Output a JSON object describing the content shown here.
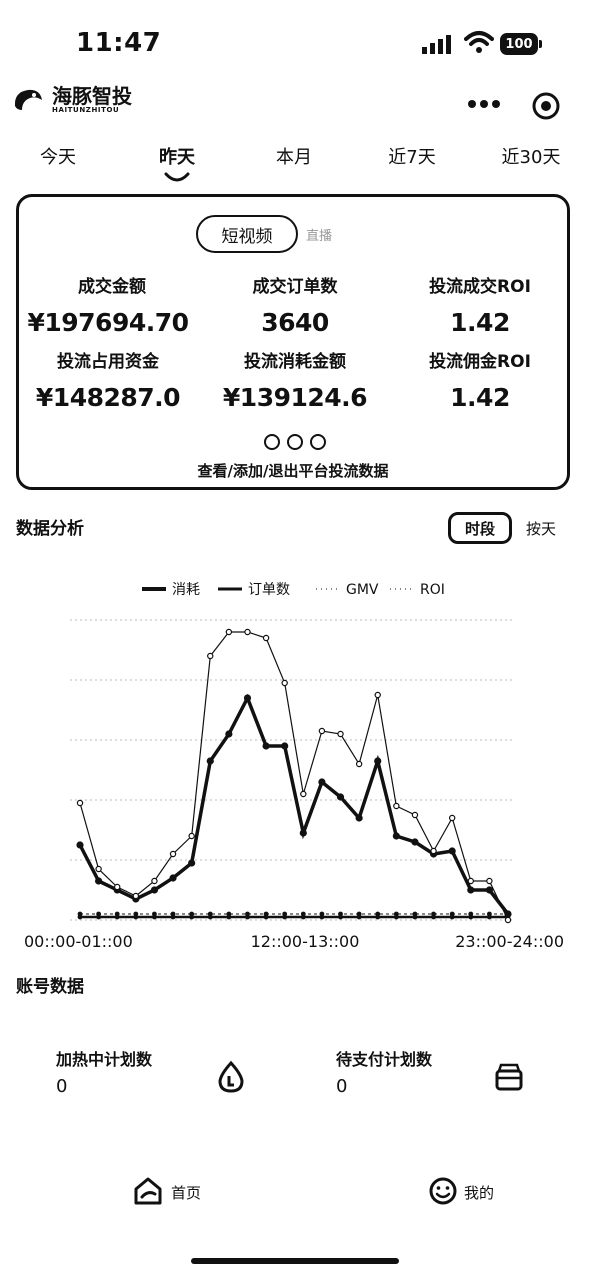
{
  "status_bar": {
    "time": "11:47",
    "battery": "100"
  },
  "header": {
    "logo_text": "海豚智投",
    "logo_sub": "HAITUNZHITOU"
  },
  "tabs": [
    {
      "label": "今天"
    },
    {
      "label": "昨天",
      "active": true
    },
    {
      "label": "本月"
    },
    {
      "label": "近7天"
    },
    {
      "label": "近30天"
    }
  ],
  "card": {
    "segment_active": "短视频",
    "segment_inactive": "直播",
    "metrics": [
      {
        "label": "成交金额",
        "value": "¥197694.70"
      },
      {
        "label": "成交订单数",
        "value": "3640"
      },
      {
        "label": "投流成交ROI",
        "value": "1.42"
      },
      {
        "label": "投流占用资金",
        "value": "¥148287.0"
      },
      {
        "label": "投流消耗金额",
        "value": "¥139124.6"
      },
      {
        "label": "投流佣金ROI",
        "value": "1.42"
      }
    ],
    "footer": "查看/添加/退出平台投流数据"
  },
  "analysis": {
    "title": "数据分析",
    "seg_active": "时段",
    "seg_inactive": "按天"
  },
  "chart_data": {
    "type": "line",
    "x_labels_shown": [
      "00::00-01::00",
      "12::00-13::00",
      "23::00-24::00"
    ],
    "x_count": 24,
    "ylim": [
      0,
      100
    ],
    "grid": true,
    "legend_position": "top",
    "series": [
      {
        "name": "消耗",
        "style": "thick-line-dots",
        "values": [
          25,
          13,
          10,
          7,
          10,
          14,
          19,
          53,
          62,
          74,
          58,
          58,
          29,
          46,
          41,
          34,
          53,
          28,
          26,
          22,
          23,
          10,
          10,
          2
        ]
      },
      {
        "name": "订单数",
        "style": "line",
        "values": [
          1,
          1,
          1,
          1,
          1,
          1,
          1,
          1,
          1,
          1,
          1,
          1,
          1,
          1,
          1,
          1,
          1,
          1,
          1,
          1,
          1,
          1,
          1,
          1
        ]
      },
      {
        "name": "GMV",
        "style": "thin-line-hollow-dots",
        "values": [
          39,
          17,
          11,
          8,
          13,
          22,
          28,
          88,
          96,
          96,
          94,
          79,
          42,
          63,
          62,
          52,
          75,
          38,
          35,
          23,
          34,
          13,
          13,
          0
        ]
      },
      {
        "name": "ROI",
        "style": "dashed-dots",
        "values": [
          2,
          2,
          2,
          2,
          2,
          2,
          2,
          2,
          2,
          2,
          2,
          2,
          2,
          2,
          2,
          2,
          2,
          2,
          2,
          2,
          2,
          2,
          2,
          2
        ]
      }
    ]
  },
  "account": {
    "title": "账号数据",
    "items": [
      {
        "label": "加热中计划数",
        "value": "0"
      },
      {
        "label": "待支付计划数",
        "value": "0"
      }
    ]
  },
  "bottom_nav": {
    "items": [
      {
        "label": "首页"
      },
      {
        "label": "我的"
      }
    ]
  }
}
